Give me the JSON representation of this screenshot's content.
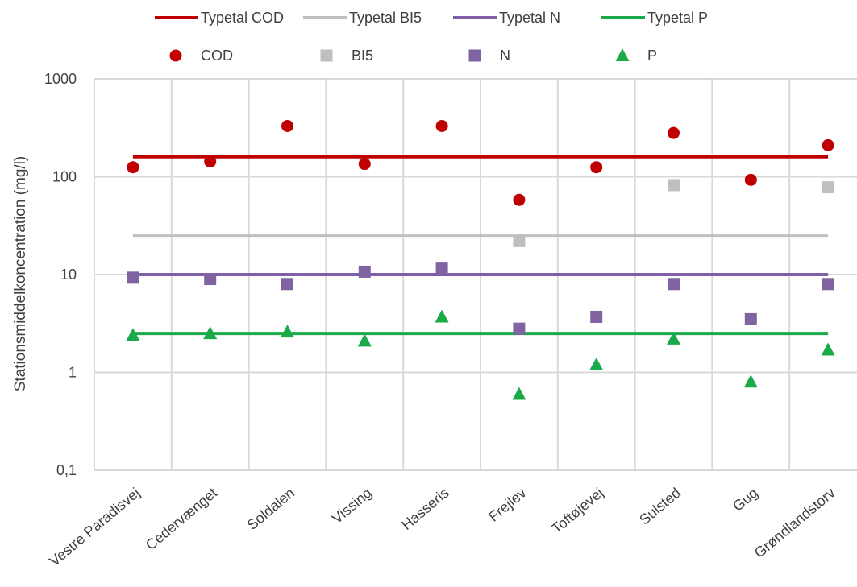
{
  "chart_data": {
    "type": "scatter",
    "title": "",
    "xlabel": "",
    "ylabel": "Stationsmiddelkoncentration (mg/l)",
    "yscale": "log",
    "ylim": [
      0.1,
      1000
    ],
    "yticks": [
      {
        "value": 0.1,
        "label": "0,1"
      },
      {
        "value": 1,
        "label": "1"
      },
      {
        "value": 10,
        "label": "10"
      },
      {
        "value": 100,
        "label": "100"
      },
      {
        "value": 1000,
        "label": "1000"
      }
    ],
    "grid": true,
    "legend_position": "top",
    "categories": [
      "Vestre Paradisvej",
      "Cedervænget",
      "Soldalen",
      "Vissing",
      "Hasseris",
      "Frejlev",
      "Toftøjevej",
      "Sulsted",
      "Gug",
      "Grøndlandstorv"
    ],
    "reference_lines": [
      {
        "name": "Typetal COD",
        "value": 160,
        "color": "#c00000"
      },
      {
        "name": "Typetal BI5",
        "value": 25,
        "color": "#bfbfbf"
      },
      {
        "name": "Typetal N",
        "value": 10,
        "color": "#7f5fa6"
      },
      {
        "name": "Typetal P",
        "value": 2.5,
        "color": "#1aaa4a"
      }
    ],
    "series": [
      {
        "name": "COD",
        "marker": "circle",
        "color": "#c00000",
        "values": [
          125,
          143,
          330,
          135,
          330,
          58,
          125,
          280,
          93,
          210
        ]
      },
      {
        "name": "BI5",
        "marker": "square",
        "color": "#bfbfbf",
        "values": [
          null,
          null,
          null,
          null,
          null,
          22,
          null,
          82,
          null,
          78
        ]
      },
      {
        "name": "N",
        "marker": "square",
        "color": "#8064a2",
        "values": [
          9.3,
          9.0,
          8.0,
          10.7,
          11.5,
          2.8,
          3.7,
          8.0,
          3.5,
          8.0
        ]
      },
      {
        "name": "P",
        "marker": "triangle",
        "color": "#1aaa4a",
        "values": [
          2.4,
          2.5,
          2.6,
          2.1,
          3.7,
          0.6,
          1.2,
          2.2,
          0.8,
          1.7
        ]
      }
    ]
  }
}
